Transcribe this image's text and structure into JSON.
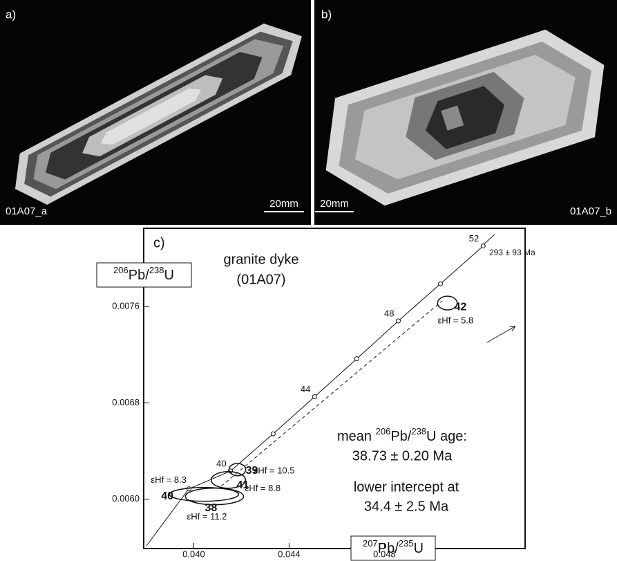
{
  "panels": [
    {
      "label": "a)",
      "sample": "01A07_a",
      "scale": "20mm"
    },
    {
      "label": "b)",
      "sample": "01A07_b",
      "scale": "20mm"
    }
  ],
  "chart_data": {
    "type": "scatter",
    "panel_label": "c)",
    "title": "granite dyke",
    "subtitle": "(01A07)",
    "x_label": {
      "mass": "207",
      "num": "Pb/",
      "mass2": "235",
      "den": "U"
    },
    "y_label": {
      "mass": "206",
      "num": "Pb/",
      "mass2": "238",
      "den": "U"
    },
    "xlim": [
      0.0379,
      0.0539
    ],
    "ylim": [
      0.00559,
      0.00825
    ],
    "xticks": [
      {
        "value": 0.04,
        "label": "0.040"
      },
      0.044,
      0.048
    ],
    "yticks": [
      {
        "value": 0.006,
        "label": "0.0060"
      },
      0.0068,
      0.0076
    ],
    "concordia": {
      "x": [
        0.0398,
        0.04154,
        0.04333,
        0.04507,
        0.04684,
        0.04858,
        0.05035,
        0.05214
      ],
      "y": [
        0.006086,
        0.006234,
        0.006543,
        0.006851,
        0.007166,
        0.00748,
        0.007789,
        0.008103
      ],
      "age_labels": [
        null,
        40,
        null,
        44,
        null,
        48,
        null,
        52
      ]
    },
    "intercept_label": "293 ± 93 Ma",
    "mean_age": {
      "prefix": "mean ",
      "mass": "206",
      "num": "Pb/",
      "mass2": "238",
      "suffix": "U age:",
      "value": "38.73 ± 0.20 Ma"
    },
    "lower_intercept": {
      "label": "lower intercept at",
      "value": "34.4 ± 2.5 Ma"
    },
    "ellipses": [
      {
        "name": "42",
        "x": 0.05064,
        "y": 0.007629,
        "x_err": 0.00041,
        "y_err": 5.7e-05,
        "hf": "εHf = 5.8"
      },
      {
        "name": "39",
        "x": 0.04183,
        "y": 0.006246,
        "x_err": 0.00035,
        "y_err": 5.1e-05,
        "hf": "εHf = 10.5"
      },
      {
        "name": "41",
        "x": 0.04145,
        "y": 0.00616,
        "x_err": 0.00072,
        "y_err": 6.9e-05,
        "hf": "εHf = 8.8"
      },
      {
        "name": "40",
        "x": 0.04043,
        "y": 0.00604,
        "x_err": 0.00145,
        "y_err": 5.7e-05,
        "hf": "εHf = 8.3"
      },
      {
        "name": "38",
        "x": 0.04087,
        "y": 0.006023,
        "x_err": 0.00122,
        "y_err": 6.9e-05,
        "hf": "εHf = 11.2"
      }
    ]
  }
}
